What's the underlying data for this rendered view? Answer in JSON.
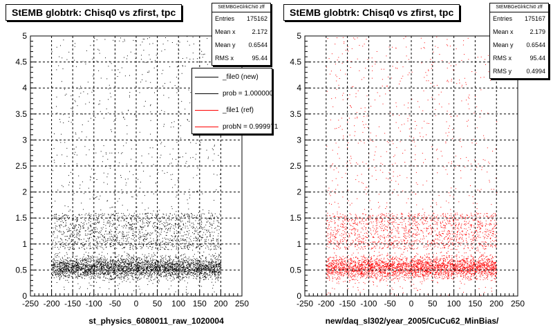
{
  "chart_data": [
    {
      "type": "scatter",
      "title": "StEMB globtrk: Chisq0 vs zfirst, tpc",
      "xlabel": "st_physics_6080011_raw_1020004",
      "ylabel": "",
      "xlim": [
        -250,
        250
      ],
      "ylim": [
        0,
        5
      ],
      "x_ticks": [
        -250,
        -200,
        -150,
        -100,
        -50,
        0,
        50,
        100,
        150,
        200,
        250
      ],
      "y_ticks": [
        0,
        0.5,
        1,
        1.5,
        2,
        2.5,
        3,
        3.5,
        4,
        4.5,
        5
      ],
      "grid": true,
      "marker_color": "#000000",
      "series": [
        {
          "name": "_file0 (new)",
          "color": "#000000"
        }
      ],
      "stats": {
        "name": "StEMBGeGlrkChi0 zff",
        "rows": [
          {
            "label": "Entries",
            "value": "175162"
          },
          {
            "label": "Mean x",
            "value": "2.172"
          },
          {
            "label": "Mean y",
            "value": "0.6544"
          },
          {
            "label": "RMS x",
            "value": "95.44"
          }
        ]
      },
      "legend": {
        "position": "top-right",
        "entries": [
          {
            "label": "_file0 (new)",
            "color": "#000000"
          },
          {
            "label": "prob = 1.000000",
            "color": "#000000"
          },
          {
            "label": "_file1 (ref)",
            "color": "#ff0000"
          },
          {
            "label": "probN = 0.999971",
            "color": "#ff0000"
          }
        ]
      }
    },
    {
      "type": "scatter",
      "title": "StEMB globtrk: Chisq0 vs zfirst, tpc",
      "xlabel": "new/daq_sl302/year_2005/CuCu62_MinBias/",
      "ylabel": "",
      "xlim": [
        -250,
        250
      ],
      "ylim": [
        0,
        5
      ],
      "x_ticks": [
        -250,
        -200,
        -150,
        -100,
        -50,
        0,
        50,
        100,
        150,
        200,
        250
      ],
      "y_ticks": [
        0,
        0.5,
        1,
        1.5,
        2,
        2.5,
        3,
        3.5,
        4,
        4.5,
        5
      ],
      "grid": true,
      "marker_color": "#ff0000",
      "series": [
        {
          "name": "_file1 (ref)",
          "color": "#ff0000"
        }
      ],
      "stats": {
        "name": "StEMBGeGlrkChi0 zff",
        "rows": [
          {
            "label": "Entries",
            "value": "175167"
          },
          {
            "label": "Mean x",
            "value": "2.179"
          },
          {
            "label": "Mean y",
            "value": "0.6544"
          },
          {
            "label": "RMS x",
            "value": "95.44"
          },
          {
            "label": "RMS y",
            "value": "0.4994"
          }
        ]
      }
    }
  ]
}
